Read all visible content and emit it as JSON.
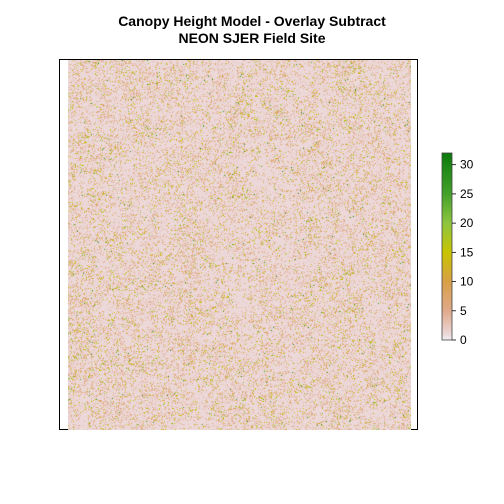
{
  "chart_data": {
    "type": "heatmap",
    "title": "Canopy Height Model - Overlay Subtract",
    "subtitle": "NEON SJER Field Site",
    "xlabel": "",
    "ylabel": "",
    "value_range": [
      0,
      32
    ],
    "legend": {
      "placement": "right",
      "ticks": [
        0,
        5,
        10,
        15,
        20,
        25,
        30
      ],
      "tick_labels": [
        "0",
        "5",
        "10",
        "15",
        "20",
        "25",
        "30"
      ]
    },
    "colormap": [
      {
        "value": 0,
        "color": "#f2f2f2"
      },
      {
        "value": 1,
        "color": "#ebd8d8"
      },
      {
        "value": 5,
        "color": "#e0a98a"
      },
      {
        "value": 10,
        "color": "#d8a046"
      },
      {
        "value": 15,
        "color": "#c8c400"
      },
      {
        "value": 20,
        "color": "#8ec53f"
      },
      {
        "value": 25,
        "color": "#43a12a"
      },
      {
        "value": 32,
        "color": "#0b7a0b"
      }
    ],
    "background_color": "#ecd8d9",
    "grid": false
  }
}
